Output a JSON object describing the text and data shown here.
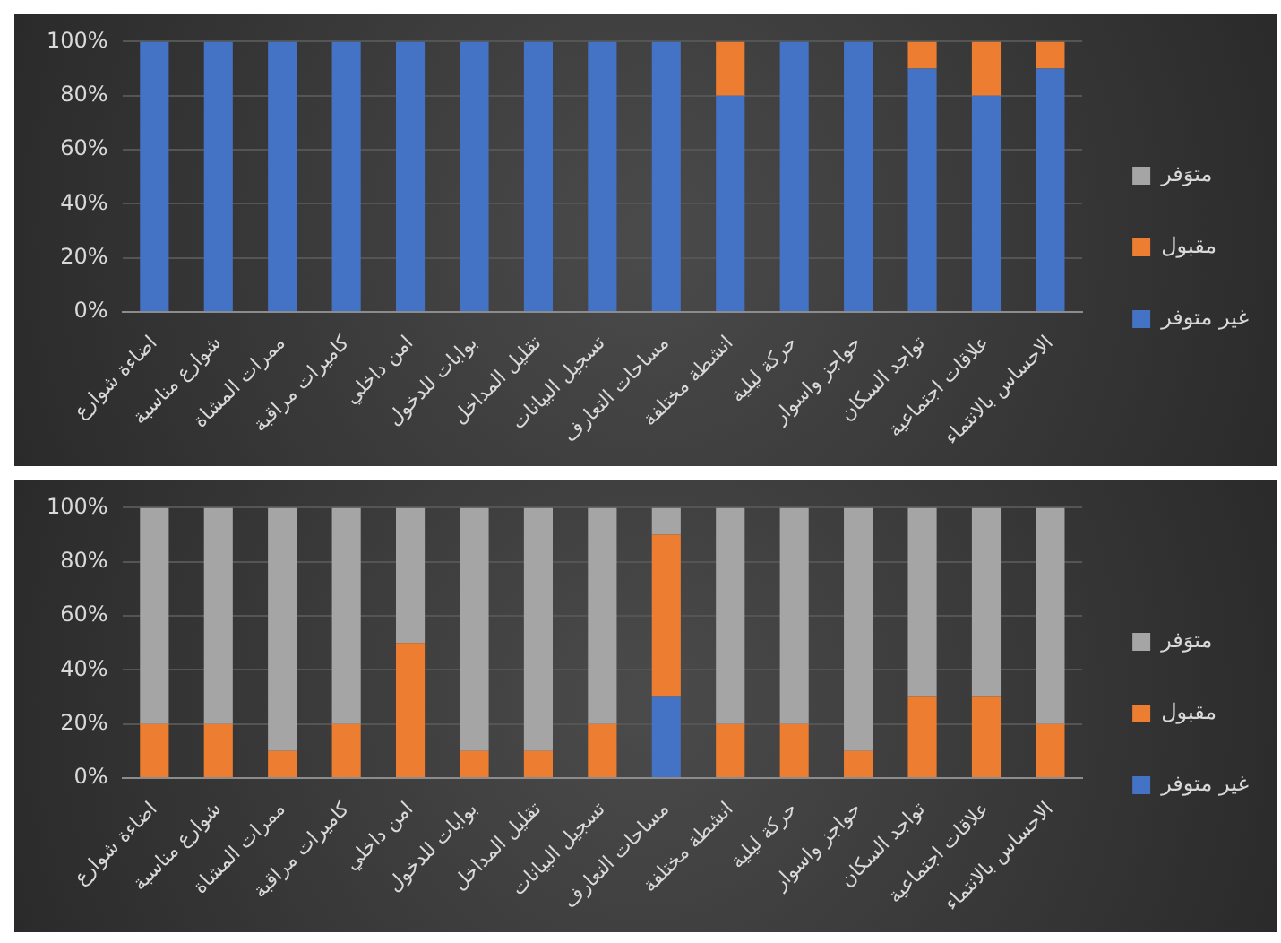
{
  "chart_data": [
    {
      "type": "bar",
      "stacked": true,
      "categories": [
        "اضاءة شوارع",
        "شوارع مناسبة",
        "ممرات المشاة",
        "كاميرات مراقبة",
        "امن داخلي",
        "بوابات للدخول",
        "تقليل المداخل",
        "تسجيل البيانات",
        "مساحات التعارف",
        "انشطة مختلفة",
        "حركة ليلية",
        "حواجز واسوار",
        "تواجد السكان",
        "علاقات اجتماعية",
        "الاحساس بالانتماء"
      ],
      "series": [
        {
          "name": "غير متوفر",
          "color": "#4472c4",
          "values": [
            100,
            100,
            100,
            100,
            100,
            100,
            100,
            100,
            100,
            80,
            100,
            100,
            90,
            80,
            90
          ]
        },
        {
          "name": "مقبول",
          "color": "#ed7d31",
          "values": [
            0,
            0,
            0,
            0,
            0,
            0,
            0,
            0,
            0,
            20,
            0,
            0,
            10,
            20,
            10
          ]
        },
        {
          "name": "متوَفر",
          "color": "#a5a5a5",
          "values": [
            0,
            0,
            0,
            0,
            0,
            0,
            0,
            0,
            0,
            0,
            0,
            0,
            0,
            0,
            0
          ]
        }
      ],
      "ylim": [
        0,
        100
      ],
      "yticks": [
        {
          "value": 0,
          "label": "0%"
        },
        {
          "value": 20,
          "label": "20%"
        },
        {
          "value": 40,
          "label": "40%"
        },
        {
          "value": 60,
          "label": "60%"
        },
        {
          "value": 80,
          "label": "80%"
        },
        {
          "value": 100,
          "label": "100%"
        }
      ],
      "grid": "y",
      "legend": "right"
    },
    {
      "type": "bar",
      "stacked": true,
      "categories": [
        "اضاءة شوارع",
        "شوارع مناسبة",
        "ممرات المشاة",
        "كاميرات مراقبة",
        "امن داخلي",
        "بوابات للدخول",
        "تقليل المداخل",
        "تسجيل البيانات",
        "مساحات التعارف",
        "انشطة مختلفة",
        "حركة ليلية",
        "حواجز واسوار",
        "تواجد السكان",
        "علاقات اجتماعية",
        "الاحساس بالانتماء"
      ],
      "series": [
        {
          "name": "غير متوفر",
          "color": "#4472c4",
          "values": [
            0,
            0,
            0,
            0,
            0,
            0,
            0,
            0,
            30,
            0,
            0,
            0,
            0,
            0,
            0
          ]
        },
        {
          "name": "مقبول",
          "color": "#ed7d31",
          "values": [
            20,
            20,
            10,
            20,
            50,
            10,
            10,
            20,
            60,
            20,
            20,
            10,
            30,
            30,
            20
          ]
        },
        {
          "name": "متوَفر",
          "color": "#a5a5a5",
          "values": [
            80,
            80,
            90,
            80,
            50,
            90,
            90,
            80,
            10,
            80,
            80,
            90,
            70,
            70,
            80
          ]
        }
      ],
      "ylim": [
        0,
        100
      ],
      "yticks": [
        {
          "value": 0,
          "label": "0%"
        },
        {
          "value": 20,
          "label": "20%"
        },
        {
          "value": 40,
          "label": "40%"
        },
        {
          "value": 60,
          "label": "60%"
        },
        {
          "value": 80,
          "label": "80%"
        },
        {
          "value": 100,
          "label": "100%"
        }
      ],
      "grid": "y",
      "legend": "right"
    }
  ]
}
